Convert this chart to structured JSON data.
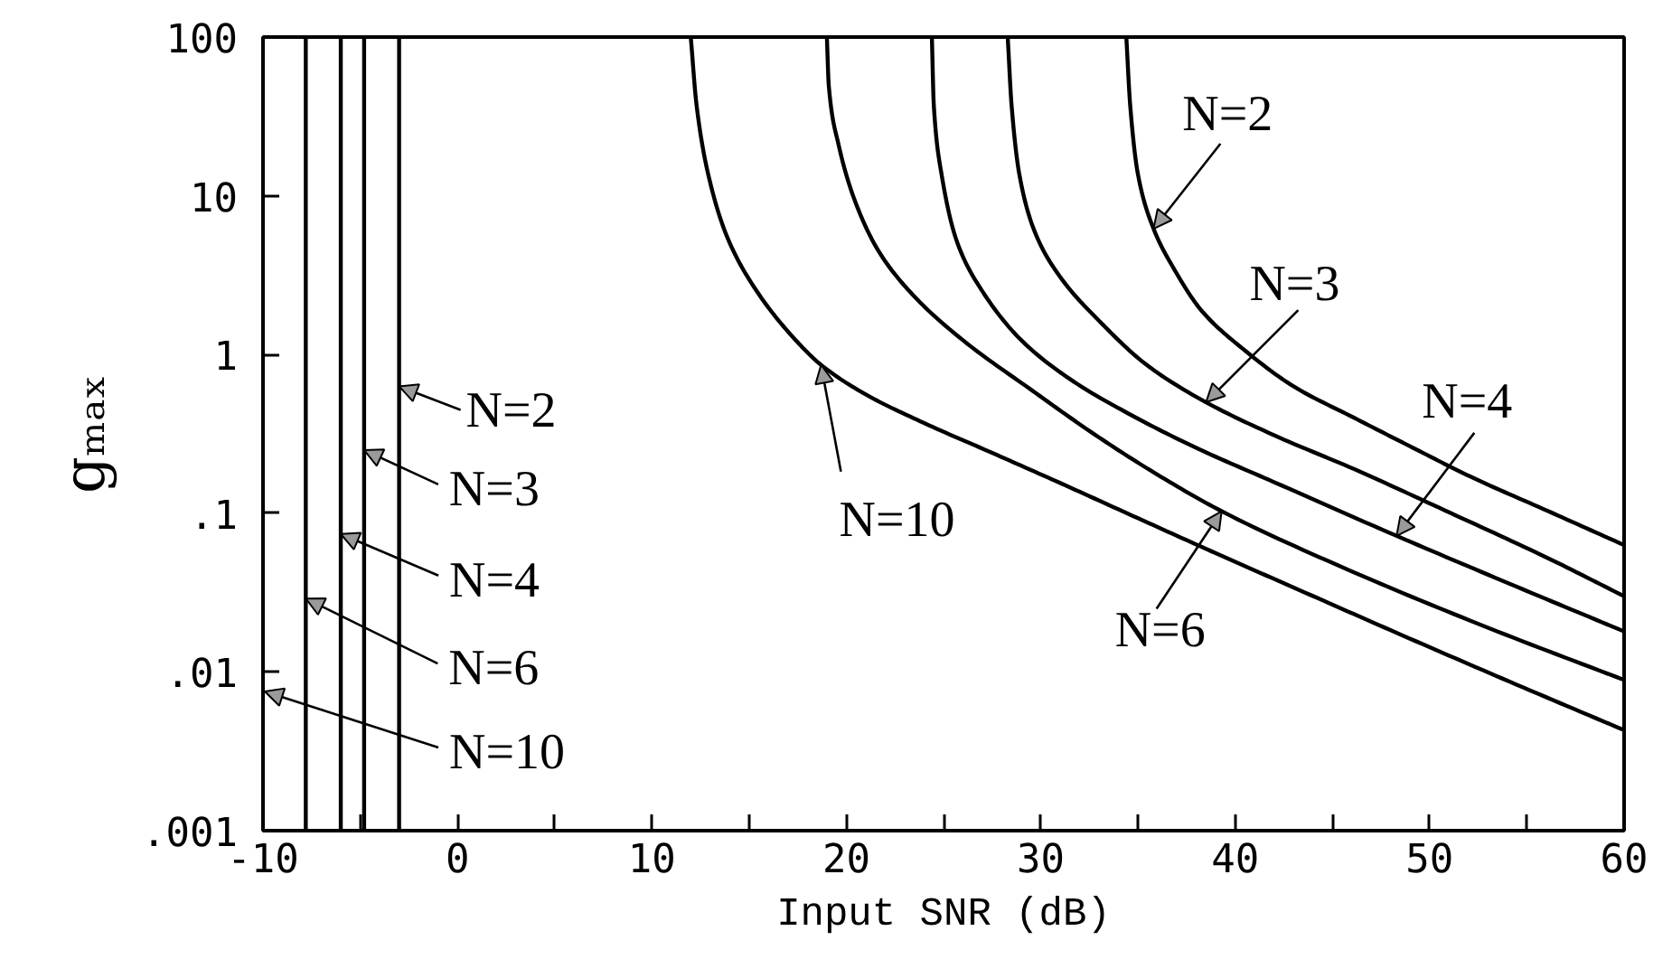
{
  "chart_data": {
    "type": "line",
    "xlabel": "Input SNR (dB)",
    "ylabel": "gₘₐₓ",
    "log": "y",
    "xlim": [
      -10,
      60
    ],
    "ylim": [
      0.001,
      100
    ],
    "xticks": [
      -10,
      {
        "value": -5,
        "label": null
      },
      0,
      {
        "value": 5,
        "label": null
      },
      10,
      {
        "value": 15,
        "label": null
      },
      20,
      {
        "value": 25,
        "label": null
      },
      30,
      {
        "value": 35,
        "label": null
      },
      40,
      {
        "value": 45,
        "label": null
      },
      50,
      {
        "value": 55,
        "label": null
      },
      60
    ],
    "yticks": [
      {
        "value": 0.001,
        "label": ".001"
      },
      {
        "value": 0.01,
        "label": ".01"
      },
      {
        "value": 0.1,
        "label": ".1"
      },
      1,
      10,
      100
    ],
    "grid": false,
    "series": [
      {
        "color": "#000000",
        "x": [
          -3.0,
          -3.0,
          -3.0
        ],
        "values": [
          0.001,
          0.63,
          100
        ]
      },
      {
        "color": "#000000",
        "x": [
          -4.8,
          -4.8,
          -4.8
        ],
        "values": [
          0.001,
          0.25,
          100
        ]
      },
      {
        "color": "#000000",
        "x": [
          -6.0,
          -6.0,
          -6.0
        ],
        "values": [
          0.001,
          0.074,
          100
        ]
      },
      {
        "color": "#000000",
        "x": [
          -7.8,
          -7.8,
          -7.8
        ],
        "values": [
          0.001,
          0.029,
          100
        ]
      },
      {
        "color": "#000000",
        "x": [
          34.4,
          34.6,
          35.0,
          35.8,
          36.8,
          38.3,
          40.5,
          43.0,
          46.1,
          49.1,
          52.1,
          56.1,
          60
        ],
        "values": [
          100,
          37,
          13.6,
          6.2,
          3.55,
          1.87,
          1.06,
          0.63,
          0.4,
          0.26,
          0.17,
          0.103,
          0.063
        ]
      },
      {
        "color": "#000000",
        "x": [
          28.3,
          28.5,
          28.9,
          29.7,
          31.0,
          33.0,
          35.5,
          38.5,
          42.0,
          46.1,
          51.1,
          56.1,
          60
        ],
        "values": [
          100,
          37,
          13.6,
          5.9,
          3.08,
          1.63,
          0.85,
          0.5,
          0.31,
          0.19,
          0.1,
          0.052,
          0.03
        ]
      },
      {
        "color": "#000000",
        "x": [
          24.4,
          24.5,
          24.9,
          25.7,
          27.0,
          29.0,
          31.5,
          34.5,
          38.0,
          42.0,
          48.3,
          54.1,
          60
        ],
        "values": [
          100,
          37,
          13.6,
          5.1,
          2.5,
          1.23,
          0.7,
          0.425,
          0.258,
          0.157,
          0.072,
          0.036,
          0.018
        ]
      },
      {
        "color": "#000000",
        "x": [
          19.0,
          19.1,
          19.6,
          20.5,
          21.7,
          23.5,
          26.0,
          29.5,
          33.0,
          36.0,
          39.3,
          46.0,
          53.0,
          60
        ],
        "values": [
          100,
          49,
          21,
          8.9,
          4.4,
          2.32,
          1.23,
          0.6,
          0.3,
          0.175,
          0.103,
          0.043,
          0.019,
          0.0089
        ]
      },
      {
        "color": "#000000",
        "x": [
          12.0,
          12.3,
          12.9,
          13.9,
          15.4,
          17.4,
          18.7,
          21.0,
          24.0,
          27.5,
          31.0,
          35.0,
          39.0,
          43.6,
          48.6,
          54.1,
          60
        ],
        "values": [
          100,
          37,
          13.6,
          5.4,
          2.5,
          1.23,
          0.86,
          0.56,
          0.37,
          0.24,
          0.155,
          0.093,
          0.056,
          0.0316,
          0.017,
          0.0087,
          0.0043
        ]
      }
    ],
    "annotations": [
      {
        "text": "N=2",
        "x": -3.0,
        "y": 0.63
      },
      {
        "text": "N=3",
        "x": -4.8,
        "y": 0.25
      },
      {
        "text": "N=4",
        "x": -6.0,
        "y": 0.074
      },
      {
        "text": "N=6",
        "x": -7.8,
        "y": 0.029
      },
      "N=10",
      {
        "text": "N=2",
        "x": 35.8,
        "y": 6.2
      },
      {
        "text": "N=3",
        "x": 38.5,
        "y": 0.5
      },
      {
        "text": "N=4",
        "x": 48.3,
        "y": 0.072
      },
      {
        "text": "N=6",
        "x": 39.3,
        "y": 0.103
      },
      {
        "text": "N=10",
        "x": 18.7,
        "y": 0.86
      }
    ]
  }
}
